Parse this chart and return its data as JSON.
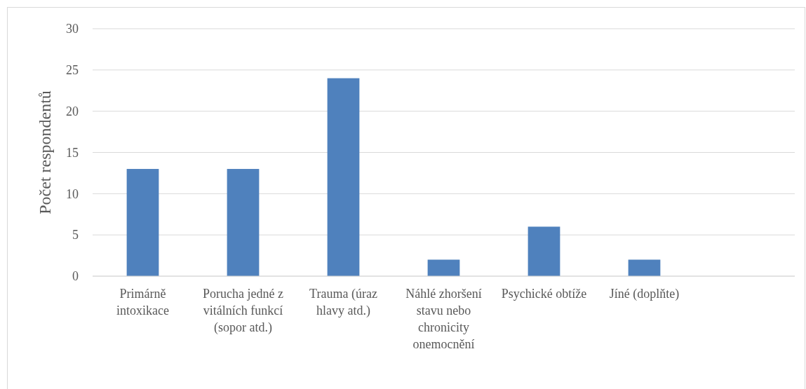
{
  "chart_data": {
    "type": "bar",
    "ylabel": "Počet respondentů",
    "categories": [
      "Primárně intoxikace",
      "Porucha jedné z vitálních funkcí (sopor atd.)",
      "Trauma (úraz hlavy atd.)",
      "Náhlé zhoršení stavu nebo chronicity onemocnění",
      "Psychické obtíže",
      "Jíné (doplňte)",
      null
    ],
    "values": [
      13,
      13,
      24,
      2,
      6,
      2,
      null
    ],
    "color": "#4f81bd",
    "ylim": [
      0,
      30
    ],
    "yticks": [
      0,
      5,
      10,
      15,
      20,
      25,
      30
    ],
    "grid": "y"
  }
}
